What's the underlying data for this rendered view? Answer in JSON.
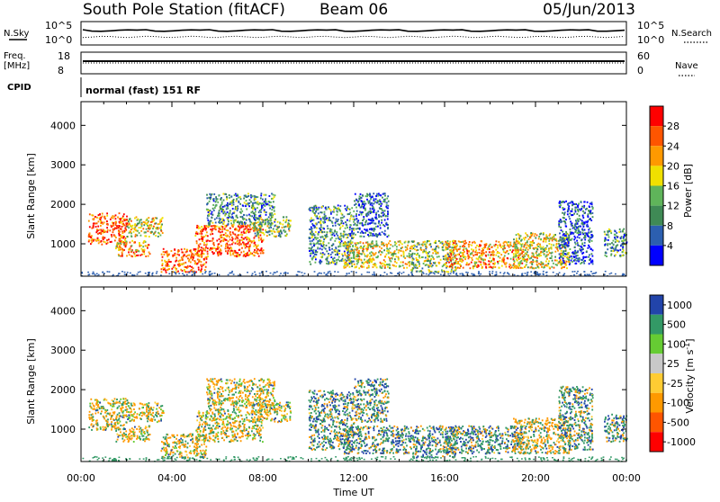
{
  "header": {
    "station": "South Pole Station (fitACF)",
    "beam": "Beam 06",
    "date": "05/Jun/2013"
  },
  "strip": {
    "nsky_label": "N.Sky",
    "nsearch_label": "N.Search",
    "noise_ticks": [
      "10^5",
      "10^0"
    ],
    "freq_label": "Freq.",
    "freq_unit": "[MHz]",
    "freq_ticks": [
      "18",
      "8"
    ],
    "nave_label": "Nave",
    "nave_ticks": [
      "60",
      "0"
    ],
    "cpid_label": "CPID",
    "cpid_text": "normal (fast) 151 RF"
  },
  "colors": {
    "power": [
      "#0000ff",
      "#2c5fb0",
      "#3f8a55",
      "#5fb45a",
      "#f0e000",
      "#ff9900",
      "#ff5500",
      "#ff0000"
    ],
    "velocity": [
      "#ff0000",
      "#ff5500",
      "#ff9900",
      "#ffcc33",
      "#c8c8c8",
      "#66cc33",
      "#339966",
      "#2244aa"
    ]
  },
  "chart_data": [
    {
      "type": "heatmap",
      "name": "power",
      "xlabel": "Time UT",
      "ylabel": "Slant Range [km]",
      "x_ticks": [
        "00:00",
        "04:00",
        "08:00",
        "12:00",
        "16:00",
        "20:00",
        "00:00"
      ],
      "y_ticks": [
        1000,
        2000,
        3000,
        4000
      ],
      "ylim": [
        180,
        4600
      ],
      "xlim_hours": [
        0,
        24
      ],
      "colorbar_label": "Power [dB]",
      "colorbar_ticks": [
        "4",
        "8",
        "12",
        "16",
        "20",
        "24",
        "28"
      ]
    },
    {
      "type": "heatmap",
      "name": "velocity",
      "xlabel": "Time UT",
      "ylabel": "Slant Range [km]",
      "x_ticks": [
        "00:00",
        "04:00",
        "08:00",
        "12:00",
        "16:00",
        "20:00",
        "00:00"
      ],
      "y_ticks": [
        1000,
        2000,
        3000,
        4000
      ],
      "ylim": [
        180,
        4600
      ],
      "xlim_hours": [
        0,
        24
      ],
      "colorbar_label": "Velocity [m s",
      "colorbar_label_sup": "-1",
      "colorbar_label_end": "]",
      "colorbar_ticks": [
        "1000",
        "500",
        "100",
        "25",
        "-25",
        "-100",
        "-500",
        "-1000"
      ]
    }
  ],
  "scatter_clusters": [
    {
      "t0": 0.3,
      "t1": 2.0,
      "r0": 1000,
      "r1": 1800,
      "lvl": 6
    },
    {
      "t0": 2.0,
      "t1": 3.6,
      "r0": 1200,
      "r1": 1700,
      "lvl": 4
    },
    {
      "t0": 1.5,
      "t1": 3.0,
      "r0": 700,
      "r1": 1100,
      "lvl": 5
    },
    {
      "t0": 3.5,
      "t1": 5.5,
      "r0": 300,
      "r1": 900,
      "lvl": 6
    },
    {
      "t0": 5.0,
      "t1": 8.0,
      "r0": 700,
      "r1": 1500,
      "lvl": 6
    },
    {
      "t0": 7.5,
      "t1": 9.2,
      "r0": 1200,
      "r1": 1700,
      "lvl": 3
    },
    {
      "t0": 5.5,
      "t1": 8.5,
      "r0": 1500,
      "r1": 2300,
      "lvl": 2
    },
    {
      "t0": 10.0,
      "t1": 12.0,
      "r0": 500,
      "r1": 2000,
      "lvl": 2
    },
    {
      "t0": 11.5,
      "t1": 14.5,
      "r0": 400,
      "r1": 1100,
      "lvl": 4
    },
    {
      "t0": 12.0,
      "t1": 13.5,
      "r0": 1200,
      "r1": 2300,
      "lvl": 1
    },
    {
      "t0": 14.5,
      "t1": 16.5,
      "r0": 300,
      "r1": 1100,
      "lvl": 3
    },
    {
      "t0": 16.0,
      "t1": 19.5,
      "r0": 400,
      "r1": 1100,
      "lvl": 5
    },
    {
      "t0": 19.0,
      "t1": 21.5,
      "r0": 400,
      "r1": 1300,
      "lvl": 4
    },
    {
      "t0": 21.0,
      "t1": 22.5,
      "r0": 500,
      "r1": 2100,
      "lvl": 1
    },
    {
      "t0": 23.0,
      "t1": 24.0,
      "r0": 700,
      "r1": 1400,
      "lvl": 2
    }
  ]
}
